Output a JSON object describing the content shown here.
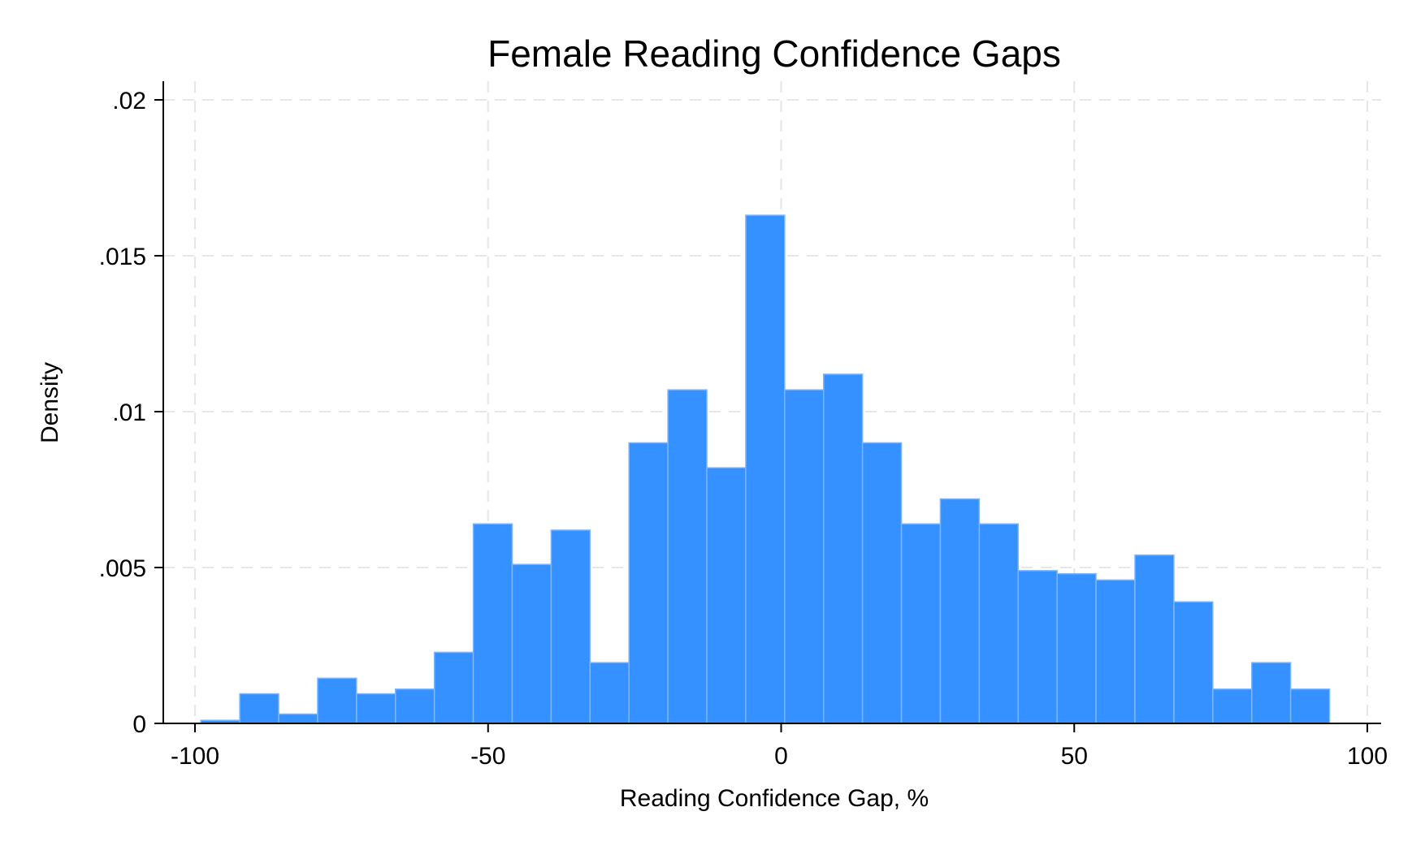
{
  "chart_data": {
    "type": "bar",
    "title": "Female Reading Confidence Gaps",
    "xlabel": "Reading Confidence Gap, %",
    "ylabel": "Density",
    "xlim": [
      -100,
      100
    ],
    "ylim": [
      0,
      0.02
    ],
    "x_ticks": [
      -100,
      -50,
      0,
      50,
      100
    ],
    "x_tick_labels": [
      "-100",
      "-50",
      "0",
      "50",
      "100"
    ],
    "y_ticks": [
      0,
      0.005,
      0.01,
      0.015,
      0.02
    ],
    "y_tick_labels": [
      "0",
      ".005",
      ".01",
      ".015",
      ".02"
    ],
    "grid": true,
    "bar_color": "#3591ff",
    "bin_start": -99,
    "bin_width": 6.64,
    "values": [
      0.0001,
      0.00095,
      0.0003,
      0.00145,
      0.00095,
      0.0011,
      0.00228,
      0.0064,
      0.0051,
      0.0062,
      0.00195,
      0.009,
      0.0107,
      0.0082,
      0.0163,
      0.0107,
      0.0112,
      0.009,
      0.0064,
      0.0072,
      0.0064,
      0.0049,
      0.0048,
      0.0046,
      0.0054,
      0.0039,
      0.0011,
      0.00195,
      0.0011
    ]
  }
}
